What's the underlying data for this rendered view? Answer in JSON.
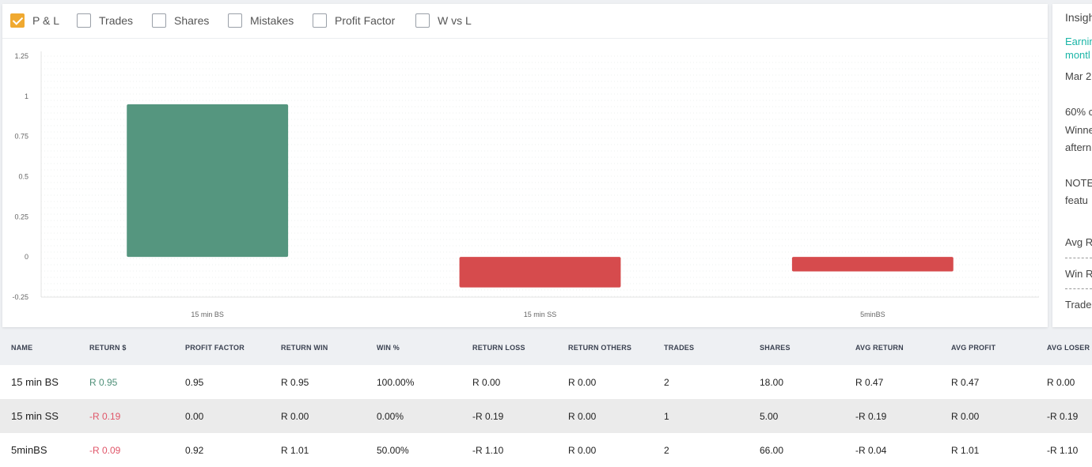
{
  "filters": [
    {
      "label": "P & L",
      "checked": true
    },
    {
      "label": "Trades",
      "checked": false
    },
    {
      "label": "Shares",
      "checked": false
    },
    {
      "label": "Mistakes",
      "checked": false
    },
    {
      "label": "Profit Factor",
      "checked": false
    },
    {
      "label": "W vs L",
      "checked": false
    }
  ],
  "chart_data": {
    "type": "bar",
    "categories": [
      "15 min BS",
      "15 min SS",
      "5minBS"
    ],
    "values": [
      0.95,
      -0.19,
      -0.09
    ],
    "ylim": [
      -0.25,
      1.25
    ],
    "yticks": [
      "1.25",
      "1",
      "0.75",
      "0.5",
      "0.25",
      "0",
      "-0.25"
    ],
    "colors": {
      "positive": "#55967f",
      "negative": "#d64b4d"
    },
    "grid": true
  },
  "insights": {
    "title": "Insigh",
    "teal_line1": "Earnin",
    "teal_line2": "montl",
    "date": "Mar 2",
    "line1": "60% c",
    "line2": "Winne",
    "line3": "aftern",
    "note1": "NOTE",
    "note2": "featu",
    "avg": "Avg R",
    "win": "Win R",
    "trades": "Trade"
  },
  "table": {
    "headers": [
      "NAME",
      "RETURN $",
      "PROFIT FACTOR",
      "RETURN WIN",
      "WIN %",
      "RETURN LOSS",
      "RETURN OTHERS",
      "TRADES",
      "SHARES",
      "AVG RETURN",
      "AVG PROFIT",
      "AVG LOSER"
    ],
    "rows": [
      [
        "15 min BS",
        "R 0.95",
        "0.95",
        "R 0.95",
        "100.00%",
        "R 0.00",
        "R 0.00",
        "2",
        "18.00",
        "R 0.47",
        "R 0.47",
        "R 0.00"
      ],
      [
        "15 min SS",
        "-R 0.19",
        "0.00",
        "R 0.00",
        "0.00%",
        "-R 0.19",
        "R 0.00",
        "1",
        "5.00",
        "-R 0.19",
        "R 0.00",
        "-R 0.19"
      ],
      [
        "5minBS",
        "-R 0.09",
        "0.92",
        "R 1.01",
        "50.00%",
        "-R 1.10",
        "R 0.00",
        "2",
        "66.00",
        "-R 0.04",
        "R 1.01",
        "-R 1.10"
      ]
    ]
  }
}
